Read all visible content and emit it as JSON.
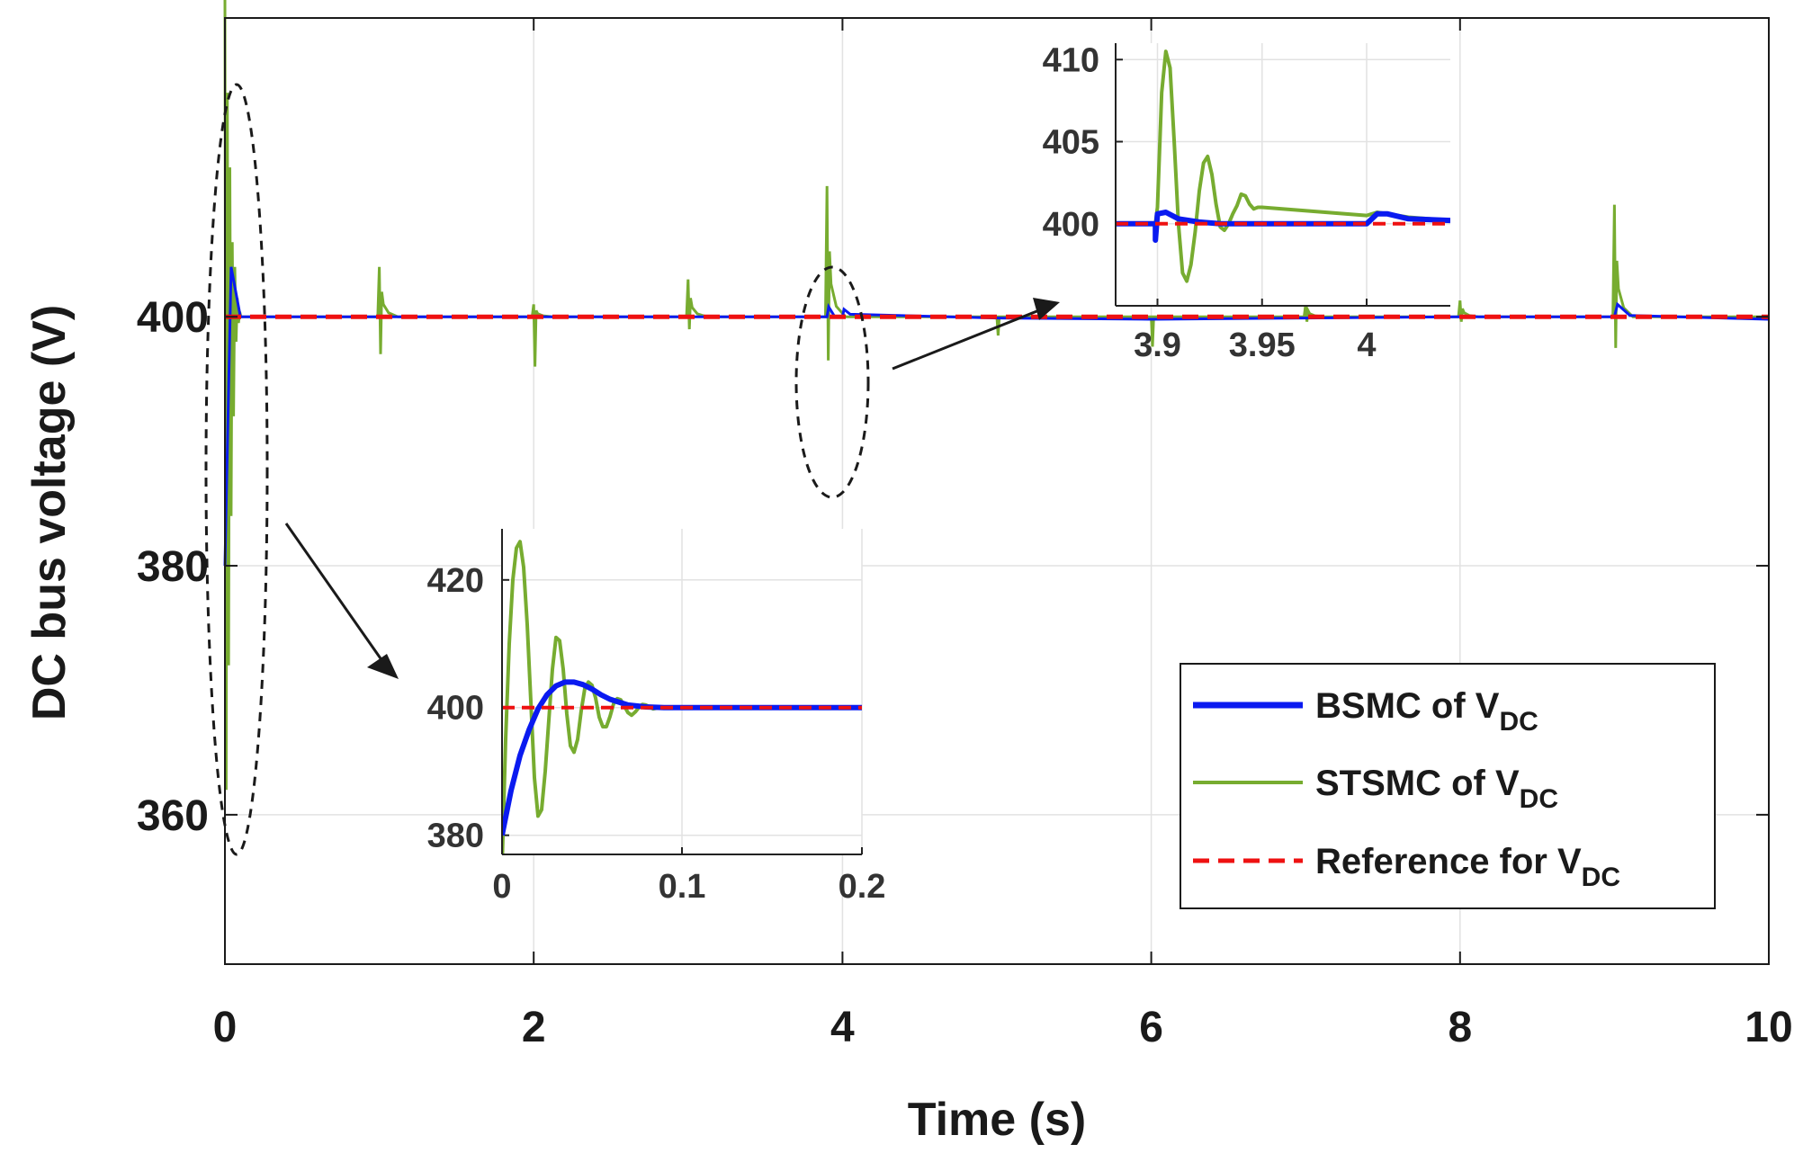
{
  "chart_data": {
    "type": "line",
    "xlabel": "Time (s)",
    "ylabel": "DC bus voltage (V)",
    "xlim": [
      0,
      10
    ],
    "ylim": [
      348,
      424
    ],
    "xticks": [
      "0",
      "2",
      "4",
      "6",
      "8",
      "10"
    ],
    "yticks": [
      "360",
      "380",
      "400"
    ],
    "ytick_values": [
      360,
      380,
      400
    ],
    "grid": true,
    "legend": {
      "placement": "bottom-right",
      "entries": [
        {
          "label": "BSMC of V",
          "sub": "DC",
          "color": "#0a1af0",
          "style": "solid-thick"
        },
        {
          "label": "STSMC of V",
          "sub": "DC",
          "color": "#77ac30",
          "style": "solid"
        },
        {
          "label": "Reference for V",
          "sub": "DC",
          "color": "#ee1111",
          "style": "dashed"
        }
      ]
    },
    "series": [
      {
        "name": "BSMC of VDC",
        "color": "#0a1af0",
        "description": "settles at 400 V with small bumps at load steps",
        "x": [
          0,
          0.04,
          0.1,
          3.9,
          3.91,
          3.95,
          4.0,
          4.01,
          4.05,
          5.0,
          6.0,
          7.0,
          8.0,
          9.0,
          9.02,
          9.1,
          10
        ],
        "y": [
          380,
          404,
          400,
          400,
          400.8,
          400,
          400,
          400.6,
          400.2,
          399.9,
          399.8,
          399.9,
          400,
          400,
          401,
          400.1,
          399.8
        ]
      },
      {
        "name": "STSMC of VDC",
        "color": "#77ac30",
        "description": "oscillatory; transient spikes at load steps",
        "events": [
          {
            "t": 0.0,
            "peak": 426,
            "trough": 362
          },
          {
            "t": 1.0,
            "peak": 404,
            "trough": 397
          },
          {
            "t": 2.0,
            "peak": 401,
            "trough": 396
          },
          {
            "t": 3.0,
            "peak": 403,
            "trough": 399
          },
          {
            "t": 3.9,
            "peak": 410.5,
            "trough": 396.5
          },
          {
            "t": 5.0,
            "peak": 400,
            "trough": 398.5
          },
          {
            "t": 6.0,
            "peak": 400,
            "trough": 397.6
          },
          {
            "t": 7.0,
            "peak": 401,
            "trough": 399.6
          },
          {
            "t": 8.0,
            "peak": 401.3,
            "trough": 399.6
          },
          {
            "t": 9.0,
            "peak": 409,
            "trough": 397.5
          }
        ]
      },
      {
        "name": "Reference for VDC",
        "color": "#ee1111",
        "x": [
          0,
          10
        ],
        "y": [
          400,
          400
        ]
      }
    ],
    "insets": [
      {
        "name": "inset-start",
        "xlim": [
          0,
          0.2
        ],
        "ylim": [
          377,
          428
        ],
        "xticks": [
          "0",
          "0.1",
          "0.2"
        ],
        "xtick_values": [
          0,
          0.1,
          0.2
        ],
        "yticks": [
          "380",
          "400",
          "420"
        ],
        "ytick_values": [
          380,
          400,
          420
        ],
        "series": [
          {
            "name": "BSMC",
            "x": [
              0,
              0.005,
              0.01,
              0.015,
              0.02,
              0.025,
              0.03,
              0.035,
              0.04,
              0.045,
              0.05,
              0.055,
              0.06,
              0.07,
              0.08,
              0.09,
              0.1,
              0.2
            ],
            "y": [
              380,
              387,
              392.5,
              396.5,
              399.8,
              402,
              403.4,
              404,
              404,
              403.6,
              402.9,
              402,
              401.3,
              400.4,
              400.1,
              400,
              400,
              400
            ]
          },
          {
            "name": "STSMC",
            "x": [
              0,
              0.002,
              0.004,
              0.006,
              0.008,
              0.01,
              0.012,
              0.014,
              0.016,
              0.018,
              0.02,
              0.022,
              0.024,
              0.026,
              0.028,
              0.03,
              0.032,
              0.034,
              0.036,
              0.038,
              0.04,
              0.042,
              0.044,
              0.046,
              0.048,
              0.05,
              0.052,
              0.054,
              0.056,
              0.058,
              0.06,
              0.062,
              0.064,
              0.066,
              0.068,
              0.07,
              0.072,
              0.074,
              0.076,
              0.078,
              0.08,
              0.084,
              0.088,
              0.092,
              0.1,
              0.2
            ],
            "y": [
              375,
              395,
              410,
              420,
              425,
              426,
              422,
              413,
              401,
              389,
              383,
              384,
              390,
              398,
              406,
              411,
              410.5,
              406,
              399,
              394,
              393,
              395,
              399.5,
              403,
              404,
              403.5,
              401.5,
              398.5,
              397,
              397,
              398.6,
              400.6,
              401.4,
              401.2,
              400.2,
              399.2,
              398.8,
              399.3,
              400,
              400.5,
              400.4,
              399.8,
              400,
              400.1,
              400,
              400
            ]
          },
          {
            "name": "Reference",
            "x": [
              0,
              0.2
            ],
            "y": [
              400,
              400
            ]
          }
        ]
      },
      {
        "name": "inset-step",
        "xlim": [
          3.88,
          4.04
        ],
        "ylim": [
          395,
          411
        ],
        "xticks": [
          "3.9",
          "3.95",
          "4"
        ],
        "xtick_values": [
          3.9,
          3.95,
          4.0
        ],
        "yticks": [
          "400",
          "405",
          "410"
        ],
        "ytick_values": [
          400,
          405,
          410
        ],
        "series": [
          {
            "name": "BSMC",
            "x": [
              3.88,
              3.899,
              3.899,
              3.9,
              3.904,
              3.91,
              3.92,
              3.93,
              3.95,
              4.0,
              4.005,
              4.01,
              4.02,
              4.04
            ],
            "y": [
              400,
              400,
              399,
              400.6,
              400.7,
              400.3,
              400.1,
              400,
              400,
              400,
              400.6,
              400.6,
              400.3,
              400.2
            ]
          },
          {
            "name": "STSMC",
            "x": [
              3.88,
              3.899,
              3.9,
              3.902,
              3.904,
              3.906,
              3.908,
              3.91,
              3.912,
              3.914,
              3.916,
              3.918,
              3.92,
              3.922,
              3.924,
              3.926,
              3.928,
              3.93,
              3.932,
              3.934,
              3.936,
              3.938,
              3.94,
              3.942,
              3.944,
              3.946,
              3.948,
              3.95,
              4.0,
              4.005,
              4.01,
              4.02,
              4.04
            ],
            "y": [
              400,
              400,
              401,
              408,
              410.5,
              409.5,
              405,
              400,
              397,
              396.5,
              397.5,
              399.5,
              402,
              403.7,
              404.1,
              403,
              401.2,
              399.8,
              399.6,
              400,
              400.6,
              401.1,
              401.8,
              401.7,
              401.2,
              400.9,
              401,
              401,
              400.5,
              400.7,
              400.6,
              400.4,
              400.2
            ]
          },
          {
            "name": "Reference",
            "x": [
              3.88,
              4.04
            ],
            "y": [
              400,
              400
            ]
          }
        ]
      }
    ]
  }
}
